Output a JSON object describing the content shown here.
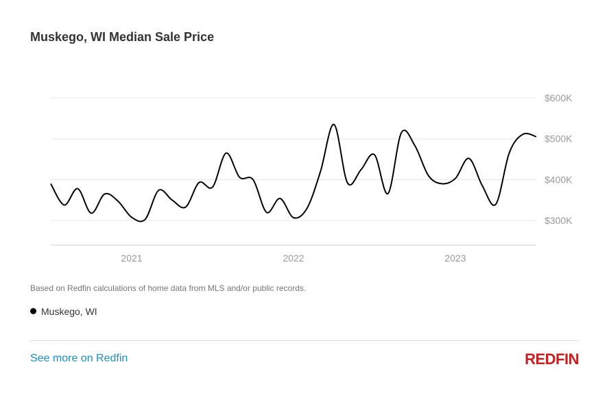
{
  "page": {
    "title": "Muskego, WI Median Sale Price",
    "note": "Based on Redfin calculations of home data from MLS and/or public records.",
    "legend_label": "Muskego, WI",
    "see_more": "See more on Redfin",
    "logo": "REDFIN"
  },
  "colors": {
    "line": "#000000",
    "grid": "#e6e6e6",
    "axis": "#d0d0d0",
    "tick": "#9a9a9a",
    "link": "#1a8fbf",
    "brand": "#c82021"
  },
  "chart_data": {
    "type": "line",
    "title": "Muskego, WI Median Sale Price",
    "xlabel": "",
    "ylabel": "",
    "x_ticks": [
      "2021",
      "2022",
      "2023"
    ],
    "y_ticks": [
      "$300K",
      "$400K",
      "$500K",
      "$600K"
    ],
    "y_tick_values": [
      300000,
      400000,
      500000,
      600000
    ],
    "ylim": [
      240000,
      600000
    ],
    "xlim": [
      "2020-07",
      "2023-07"
    ],
    "grid": true,
    "legend": "bottom-left",
    "series": [
      {
        "name": "Muskego, WI",
        "x": [
          "2020-07",
          "2020-08",
          "2020-09",
          "2020-10",
          "2020-11",
          "2020-12",
          "2021-01",
          "2021-02",
          "2021-03",
          "2021-04",
          "2021-05",
          "2021-06",
          "2021-07",
          "2021-08",
          "2021-09",
          "2021-10",
          "2021-11",
          "2021-12",
          "2022-01",
          "2022-02",
          "2022-03",
          "2022-04",
          "2022-05",
          "2022-06",
          "2022-07",
          "2022-08",
          "2022-09",
          "2022-10",
          "2022-11",
          "2022-12",
          "2023-01",
          "2023-02",
          "2023-03",
          "2023-04",
          "2023-05",
          "2023-06",
          "2023-07"
        ],
        "values": [
          390000,
          338000,
          378000,
          318000,
          365000,
          347000,
          308000,
          303000,
          374000,
          350000,
          333000,
          393000,
          382000,
          465000,
          406000,
          400000,
          320000,
          354000,
          307000,
          330000,
          420000,
          535000,
          392000,
          424000,
          461000,
          366000,
          515000,
          483000,
          410000,
          390000,
          403000,
          452000,
          385000,
          340000,
          466000,
          511000,
          505000
        ]
      }
    ]
  }
}
